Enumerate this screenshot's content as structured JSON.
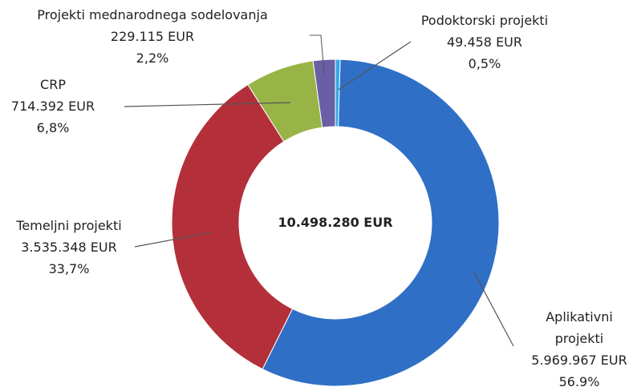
{
  "chart_data": {
    "type": "donut",
    "categories": [
      "Podoktorski projekti",
      "Aplikativni projekti",
      "Temeljni projekti",
      "CRP",
      "Projekti mednarodnega sodelovanja"
    ],
    "values": [
      49458,
      5969967,
      3535348,
      714392,
      229115
    ],
    "value_labels": [
      "49.458 EUR",
      "5.969.967 EUR",
      "3.535.348 EUR",
      "714.392 EUR",
      "229.115 EUR"
    ],
    "percents": [
      0.5,
      56.9,
      33.7,
      6.8,
      2.2
    ],
    "percent_labels": [
      "0,5%",
      "56.9%",
      "33,7%",
      "6,8%",
      "2,2%"
    ],
    "colors": [
      "#35a8e6",
      "#2f6fc6",
      "#b3303b",
      "#98b447",
      "#6a5ea6"
    ],
    "center_label": "10.498.280 EUR"
  }
}
